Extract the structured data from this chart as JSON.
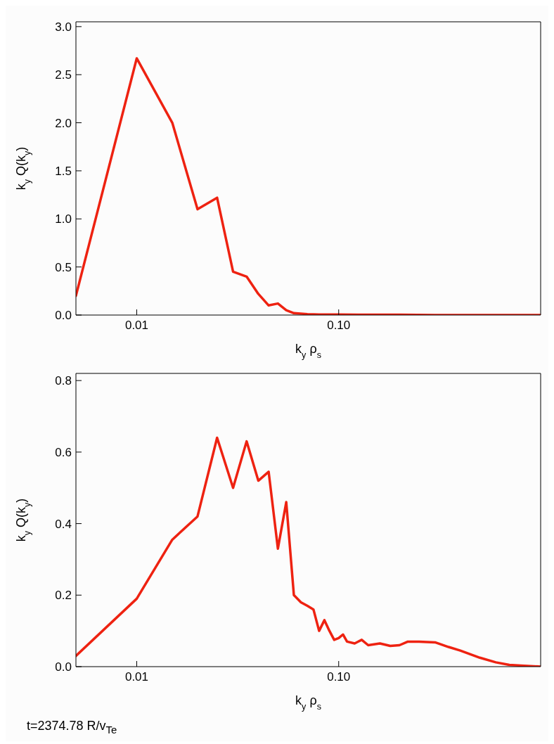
{
  "chart_data": [
    {
      "type": "line",
      "xlabel": "k$_{y}$ ρ$_{s}$",
      "ylabel": "k$_{y}$ Q(k$_{y}$)",
      "log": "x",
      "marker": "none",
      "x": [
        0.005,
        0.01,
        0.015,
        0.02,
        0.025,
        0.03,
        0.035,
        0.04,
        0.045,
        0.05,
        0.055,
        0.06,
        0.07,
        0.08,
        0.1,
        0.15,
        0.2,
        0.3,
        0.5,
        1.0
      ],
      "series": [
        {
          "color": "#ee2211",
          "values": [
            0.2,
            2.67,
            2.0,
            1.1,
            1.22,
            0.45,
            0.4,
            0.22,
            0.1,
            0.12,
            0.05,
            0.02,
            0.01,
            0.005,
            0.005,
            0.003,
            0.003,
            0.0,
            0.0,
            0.0
          ]
        }
      ],
      "xlim": [
        0.005,
        1.0
      ],
      "xticks": [
        0.01,
        {
          "value": 0.1,
          "label": "0.10"
        }
      ],
      "ylim": [
        0,
        3.05
      ],
      "yticks": [
        {
          "value": 0,
          "label": "0.0"
        },
        0.5,
        {
          "value": 1,
          "label": "1.0"
        },
        1.5,
        {
          "value": 2,
          "label": "2.0"
        },
        2.5,
        {
          "value": 3,
          "label": "3.0"
        }
      ]
    },
    {
      "type": "line",
      "xlabel": "k$_{y}$ ρ$_{s}$",
      "ylabel": "k$_{y}$ Q(k$_{y}$)",
      "log": "x",
      "marker": "none",
      "x": [
        0.005,
        0.01,
        0.015,
        0.02,
        0.025,
        0.03,
        0.035,
        0.04,
        0.045,
        0.05,
        0.055,
        0.06,
        0.065,
        0.07,
        0.075,
        0.08,
        0.085,
        0.09,
        0.095,
        0.1,
        0.105,
        0.11,
        0.12,
        0.13,
        0.14,
        0.16,
        0.18,
        0.2,
        0.22,
        0.25,
        0.3,
        0.35,
        0.4,
        0.5,
        0.6,
        0.7,
        0.8,
        1.0
      ],
      "series": [
        {
          "color": "#ee2211",
          "values": [
            0.03,
            0.19,
            0.355,
            0.42,
            0.64,
            0.5,
            0.63,
            0.52,
            0.545,
            0.33,
            0.46,
            0.2,
            0.18,
            0.17,
            0.16,
            0.1,
            0.13,
            0.1,
            0.075,
            0.08,
            0.09,
            0.07,
            0.065,
            0.075,
            0.06,
            0.065,
            0.058,
            0.06,
            0.07,
            0.07,
            0.068,
            0.055,
            0.045,
            0.025,
            0.012,
            0.005,
            0.003,
            0.0
          ]
        }
      ],
      "xlim": [
        0.005,
        1.0
      ],
      "xticks": [
        0.01,
        {
          "value": 0.1,
          "label": "0.10"
        }
      ],
      "ylim": [
        0,
        0.82
      ],
      "yticks": [
        {
          "value": 0,
          "label": "0.0"
        },
        0.2,
        0.4,
        0.6,
        0.8
      ],
      "annotations": [
        "t=2374.78 R/v$_{Te}$"
      ]
    }
  ]
}
